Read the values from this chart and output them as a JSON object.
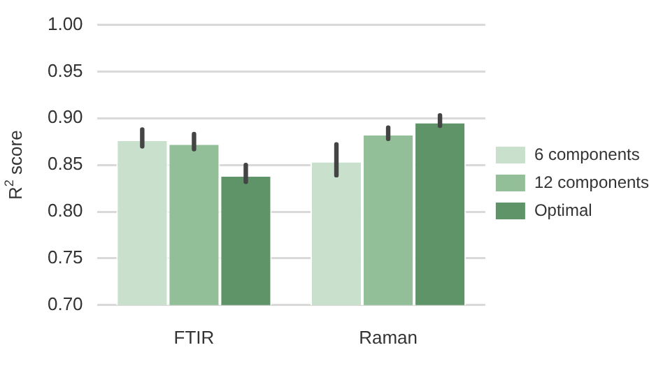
{
  "chart_data": {
    "type": "bar",
    "ylabel": "R$^{2}$ score",
    "categories": [
      "FTIR",
      "Raman"
    ],
    "series": [
      {
        "name": "6 components",
        "color": "#c8e0cc",
        "values": [
          0.877,
          0.854
        ],
        "errors": [
          [
            0.87,
            0.888
          ],
          [
            0.839,
            0.872
          ]
        ]
      },
      {
        "name": "12 components",
        "color": "#92bf98",
        "values": [
          0.873,
          0.883
        ],
        "errors": [
          [
            0.867,
            0.883
          ],
          [
            0.878,
            0.89
          ]
        ]
      },
      {
        "name": "Optimal",
        "color": "#5e9468",
        "values": [
          0.839,
          0.896
        ],
        "errors": [
          [
            0.832,
            0.85
          ],
          [
            0.892,
            0.903
          ]
        ]
      }
    ],
    "ylim": [
      0.7,
      1.0
    ],
    "yticks": [
      {
        "value": 0.7,
        "label": "0.70"
      },
      0.75,
      {
        "value": 0.8,
        "label": "0.80"
      },
      0.85,
      {
        "value": 0.9,
        "label": "0.90"
      },
      0.95,
      {
        "value": 1.0,
        "label": "1.00"
      }
    ],
    "grid": "y",
    "legend": "right"
  }
}
